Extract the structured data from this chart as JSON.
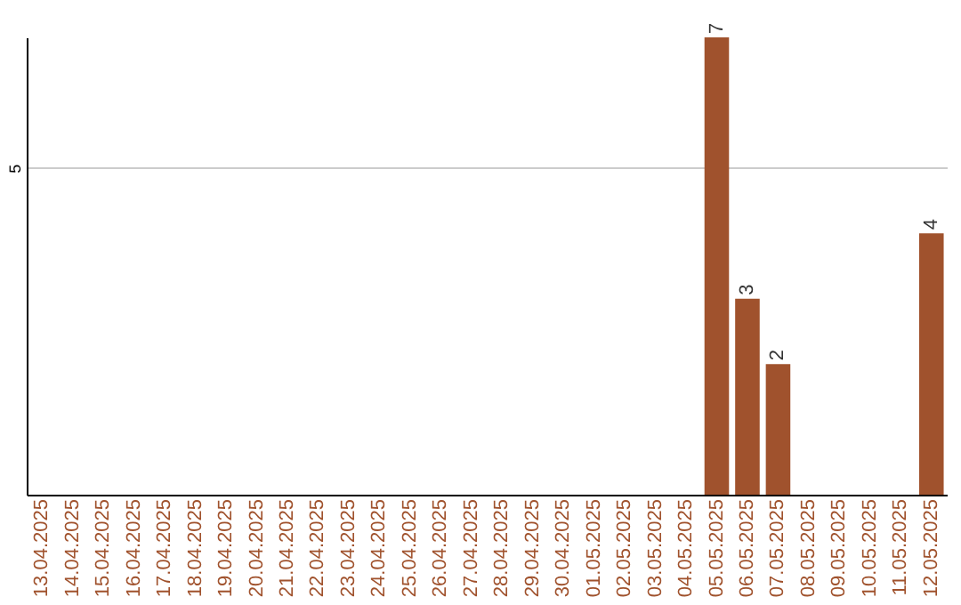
{
  "chart_data": {
    "type": "bar",
    "categories": [
      "13.04.2025",
      "14.04.2025",
      "15.04.2025",
      "16.04.2025",
      "17.04.2025",
      "18.04.2025",
      "19.04.2025",
      "20.04.2025",
      "21.04.2025",
      "22.04.2025",
      "23.04.2025",
      "24.04.2025",
      "25.04.2025",
      "26.04.2025",
      "27.04.2025",
      "28.04.2025",
      "29.04.2025",
      "30.04.2025",
      "01.05.2025",
      "02.05.2025",
      "03.05.2025",
      "04.05.2025",
      "05.05.2025",
      "06.05.2025",
      "07.05.2025",
      "08.05.2025",
      "09.05.2025",
      "10.05.2025",
      "11.05.2025",
      "12.05.2025"
    ],
    "values": [
      null,
      null,
      null,
      null,
      null,
      null,
      null,
      null,
      null,
      null,
      null,
      null,
      null,
      null,
      null,
      null,
      null,
      null,
      null,
      null,
      null,
      null,
      7,
      3,
      2,
      null,
      null,
      null,
      null,
      4
    ],
    "data_labels": true,
    "color": "#a0522d",
    "ylim": [
      0,
      7
    ],
    "yticks": [
      5
    ],
    "grid": "y"
  }
}
